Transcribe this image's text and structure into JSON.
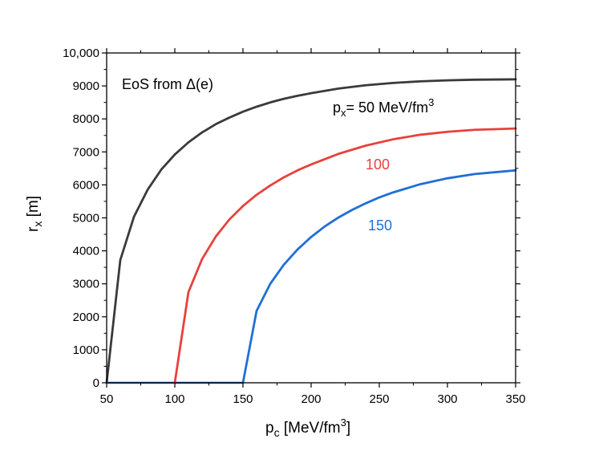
{
  "chart_data": {
    "type": "line",
    "xlabel": {
      "main": "p",
      "sub": "c",
      "rest": " [MeV/fm",
      "sup": "3",
      "close": "]"
    },
    "ylabel": {
      "main": "r",
      "sub": "x",
      "rest": " [m]"
    },
    "xlim": [
      50,
      350
    ],
    "ylim": [
      0,
      10000
    ],
    "x_ticks": [
      50,
      100,
      150,
      200,
      250,
      300,
      350
    ],
    "x_tick_labels": [
      "50",
      "100",
      "150",
      "200",
      "250",
      "300",
      "350"
    ],
    "y_ticks": [
      0,
      1000,
      2000,
      3000,
      4000,
      5000,
      6000,
      7000,
      8000,
      9000,
      10000
    ],
    "y_tick_labels": [
      "0",
      "1000",
      "2000",
      "3000",
      "4000",
      "5000",
      "6000",
      "7000",
      "8000",
      "9000",
      "10,000"
    ],
    "grid": false,
    "annotations": {
      "eos": "EoS from Δ(e)",
      "px_prefix": "p",
      "px_sub": "x",
      "px_rest": "= 50 MeV/fm",
      "px_sup": "3",
      "label_100": "100",
      "label_150": "150"
    },
    "series": [
      {
        "color": "#3a3a3a",
        "x": [
          50,
          60,
          70,
          80,
          90,
          100,
          110,
          120,
          130,
          140,
          150,
          160,
          170,
          180,
          190,
          200,
          220,
          240,
          260,
          280,
          300,
          320,
          350
        ],
        "y": [
          0,
          3720,
          5030,
          5850,
          6460,
          6920,
          7290,
          7590,
          7840,
          8040,
          8220,
          8370,
          8500,
          8610,
          8700,
          8780,
          8920,
          9020,
          9090,
          9140,
          9170,
          9190,
          9200
        ]
      },
      {
        "color": "#e8413c",
        "x": [
          100,
          110,
          120,
          130,
          140,
          150,
          160,
          170,
          180,
          190,
          200,
          220,
          240,
          260,
          280,
          300,
          320,
          350
        ],
        "y": [
          0,
          2750,
          3750,
          4430,
          4950,
          5360,
          5700,
          5980,
          6230,
          6440,
          6620,
          6940,
          7190,
          7380,
          7520,
          7610,
          7670,
          7710
        ]
      },
      {
        "color": "#1f6fd6",
        "x": [
          150,
          160,
          170,
          180,
          190,
          200,
          210,
          220,
          230,
          240,
          250,
          260,
          280,
          300,
          320,
          350
        ],
        "y": [
          0,
          2180,
          3000,
          3580,
          4040,
          4420,
          4740,
          5010,
          5240,
          5440,
          5620,
          5770,
          6020,
          6200,
          6330,
          6440
        ]
      }
    ],
    "flat_segment": {
      "color": "#1f6fd6",
      "x": [
        50,
        150
      ],
      "y": [
        0,
        0
      ]
    }
  }
}
